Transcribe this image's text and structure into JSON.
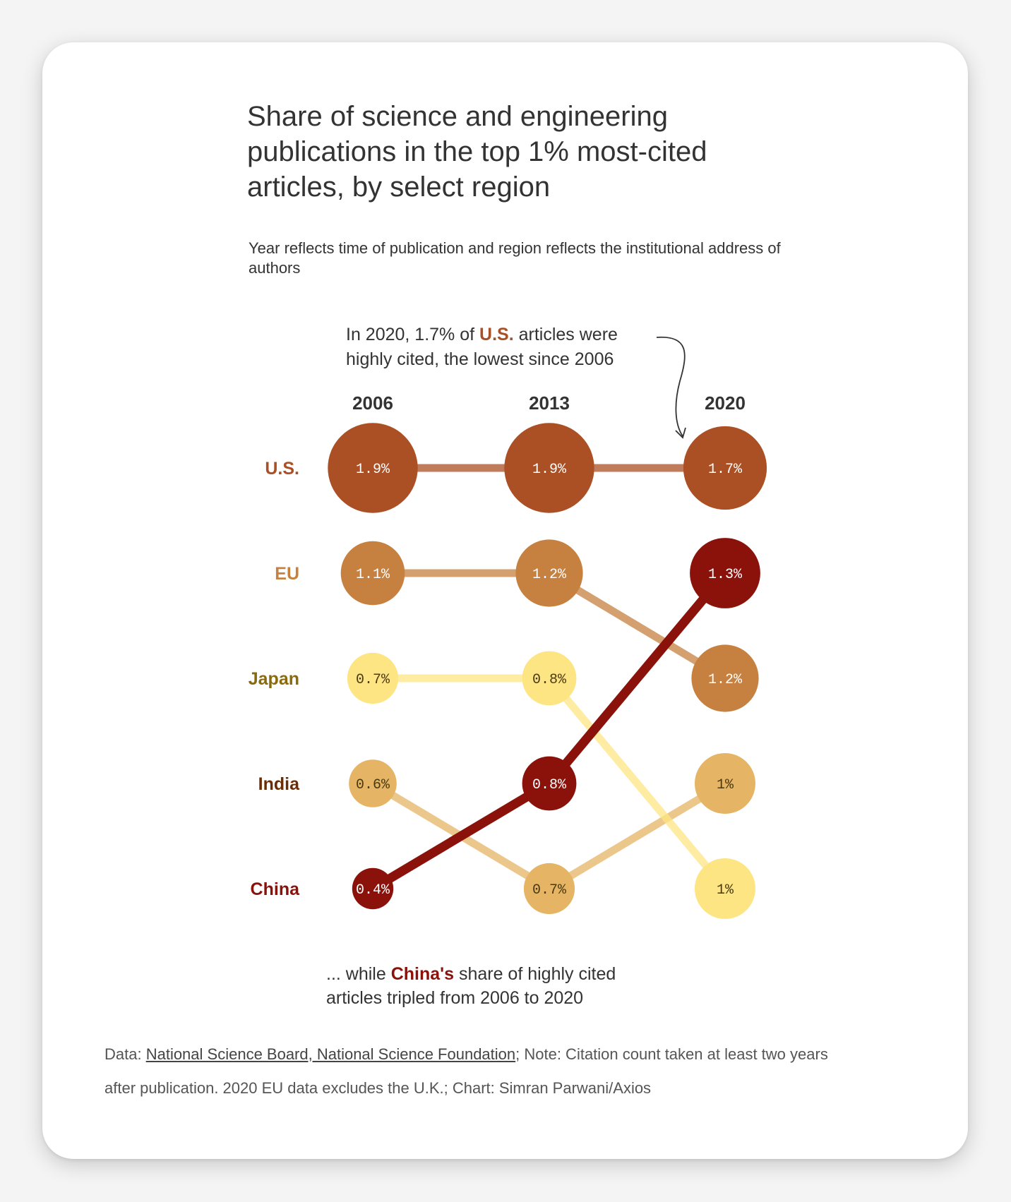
{
  "title": "Share of science and engineering publications in the top 1% most-cited articles, by select region",
  "subtitle": "Year reflects time of publication and region reflects the institutional address of authors",
  "annotation_top": {
    "before": "In 2020, 1.7% of ",
    "highlight": "U.S.",
    "after": " articles were",
    "line2": "highly cited, the lowest since 2006"
  },
  "annotation_bottom": {
    "before": "... while ",
    "highlight": "China's",
    "after": " share of highly cited",
    "line2": "articles tripled from 2006 to 2020"
  },
  "footer": {
    "data_prefix": "Data: ",
    "source_link": "National Science Board, National Science Foundation",
    "note_line1": "; Note: Citation count taken at least two years",
    "line2": "after publication. 2020 EU data excludes the U.K.; Chart: Simran Parwani/Axios"
  },
  "colors": {
    "us": "#ab4f24",
    "eu": "#c6803f",
    "japan": "#fde584",
    "india": "#e6b465",
    "china": "#8a120b",
    "us_label": "#ab4f24",
    "eu_label": "#c6803f",
    "japan_label": "#8b6a0c",
    "india_label": "#6b2d06",
    "china_label": "#8a120b"
  },
  "chart_data": {
    "type": "bump",
    "years": [
      "2006",
      "2013",
      "2020"
    ],
    "rank_labels": [
      "U.S.",
      "EU",
      "Japan",
      "India",
      "China"
    ],
    "series": [
      {
        "name": "U.S.",
        "key": "us",
        "values": [
          1.9,
          1.9,
          1.7
        ],
        "labels": [
          "1.9%",
          "1.9%",
          "1.7%"
        ],
        "ranks": [
          1,
          1,
          1
        ]
      },
      {
        "name": "EU",
        "key": "eu",
        "values": [
          1.1,
          1.2,
          1.2
        ],
        "labels": [
          "1.1%",
          "1.2%",
          "1.2%"
        ],
        "ranks": [
          2,
          2,
          3
        ]
      },
      {
        "name": "Japan",
        "key": "japan",
        "values": [
          0.7,
          0.8,
          1.0
        ],
        "labels": [
          "0.7%",
          "0.8%",
          "1%"
        ],
        "ranks": [
          3,
          3,
          5
        ]
      },
      {
        "name": "India",
        "key": "india",
        "values": [
          0.6,
          0.7,
          1.0
        ],
        "labels": [
          "0.6%",
          "0.7%",
          "1%"
        ],
        "ranks": [
          4,
          5,
          4
        ]
      },
      {
        "name": "China",
        "key": "china",
        "values": [
          0.4,
          0.8,
          1.3
        ],
        "labels": [
          "0.4%",
          "0.8%",
          "1.3%"
        ],
        "ranks": [
          5,
          4,
          2
        ]
      }
    ]
  }
}
